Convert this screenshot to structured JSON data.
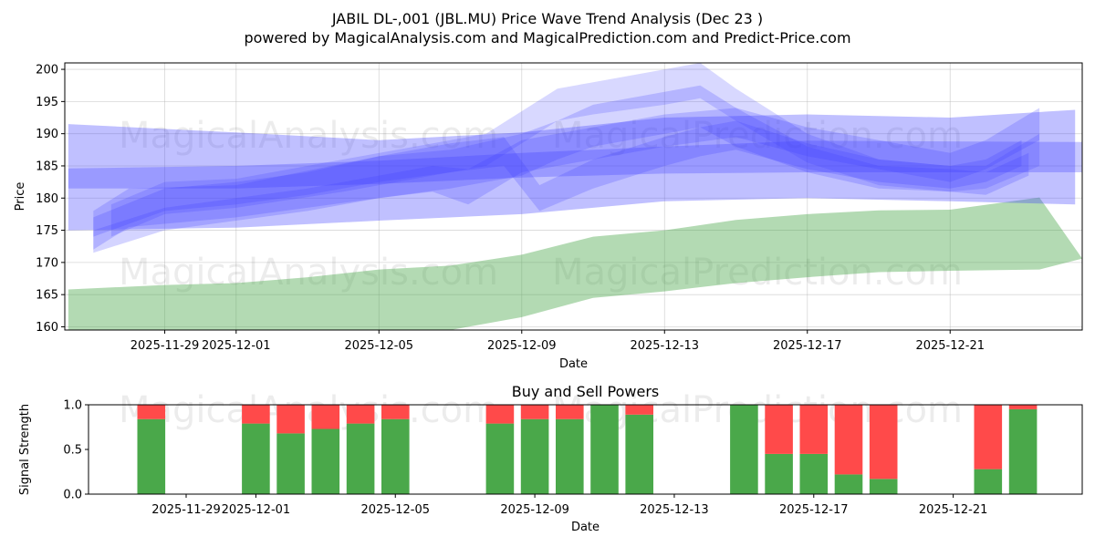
{
  "title_line1": "JABIL DL-,001 (JBL.MU) Price Wave Trend Analysis (Dec 23 )",
  "title_line2": "powered by MagicalAnalysis.com and MagicalPrediction.com and Predict-Price.com",
  "watermarks": [
    "MagicalAnalysis.com",
    "MagicalPrediction.com"
  ],
  "chart_data": [
    {
      "type": "area",
      "title": "JABIL DL-,001 (JBL.MU) Price Wave Trend Analysis (Dec 23 )",
      "xlabel": "Date",
      "ylabel": "Price",
      "ylim": [
        159.5,
        201
      ],
      "yticks": [
        160,
        165,
        170,
        175,
        180,
        185,
        190,
        195,
        200
      ],
      "xlim_days": [
        -2.8,
        25.7
      ],
      "xticks": [
        {
          "label": "2025-11-29",
          "day": 0
        },
        {
          "label": "2025-12-01",
          "day": 2
        },
        {
          "label": "2025-12-05",
          "day": 6
        },
        {
          "label": "2025-12-09",
          "day": 10
        },
        {
          "label": "2025-12-13",
          "day": 14
        },
        {
          "label": "2025-12-17",
          "day": 18
        },
        {
          "label": "2025-12-21",
          "day": 22
        }
      ],
      "grid": true,
      "blue_bands": [
        {
          "days": [
            -2.7,
            2,
            6,
            10,
            14,
            18,
            22,
            25.5
          ],
          "upper": [
            191.5,
            190.2,
            189.0,
            190.2,
            192.5,
            193.0,
            192.5,
            193.7
          ],
          "lower": [
            175.0,
            175.4,
            176.5,
            177.5,
            179.5,
            180.0,
            179.5,
            179.0
          ]
        },
        {
          "days": [
            -2.7,
            2,
            6,
            10,
            14,
            18,
            22,
            25.7
          ],
          "upper": [
            184.6,
            185.0,
            185.8,
            187.0,
            188.0,
            188.9,
            188.8,
            188.7
          ],
          "lower": [
            181.5,
            181.5,
            182.2,
            183.2,
            183.8,
            184.0,
            184.0,
            184.0
          ]
        },
        {
          "days": [
            -2.0,
            -1.0,
            2,
            6,
            8,
            10,
            11,
            12,
            14,
            15,
            16,
            18,
            20,
            22,
            23,
            24.2
          ],
          "upper": [
            178.0,
            181.5,
            182.0,
            186.5,
            187.5,
            190.0,
            192.0,
            194.5,
            196.5,
            197.5,
            194.0,
            188.0,
            185.0,
            184.5,
            184.0,
            187.0
          ],
          "lower": [
            172.0,
            175.5,
            177.0,
            180.0,
            181.5,
            183.5,
            186.0,
            188.0,
            190.0,
            191.0,
            188.0,
            184.0,
            181.5,
            181.0,
            180.5,
            183.5
          ]
        },
        {
          "days": [
            -1.5,
            0,
            2,
            5,
            9,
            10,
            11,
            12,
            14,
            15,
            16,
            18,
            20,
            22,
            23,
            24.5
          ],
          "upper": [
            179.0,
            182.5,
            183.0,
            186.0,
            190.0,
            193.5,
            197.0,
            198.0,
            200.0,
            201.0,
            197.0,
            190.0,
            186.0,
            185.0,
            185.0,
            190.0
          ],
          "lower": [
            174.0,
            177.5,
            178.5,
            181.0,
            185.0,
            188.5,
            192.0,
            193.0,
            194.5,
            195.5,
            192.0,
            185.5,
            182.0,
            181.0,
            181.5,
            185.0
          ]
        },
        {
          "days": [
            -2.0,
            0,
            2,
            4,
            6,
            8,
            9.5,
            10.5,
            12,
            14,
            15,
            16,
            18,
            20,
            22,
            23,
            24.0
          ],
          "upper": [
            177.0,
            181.5,
            182.5,
            184.0,
            186.5,
            188.5,
            189.5,
            182.0,
            186.0,
            189.5,
            191.0,
            192.0,
            188.5,
            186.0,
            185.0,
            186.0,
            189.0
          ],
          "lower": [
            174.0,
            178.0,
            179.0,
            180.5,
            182.5,
            184.0,
            185.0,
            178.0,
            181.5,
            185.0,
            186.5,
            187.5,
            184.5,
            182.5,
            181.5,
            182.5,
            185.0
          ]
        },
        {
          "days": [
            -2.0,
            0,
            2,
            4,
            6,
            7.5,
            8.5,
            10,
            12,
            14,
            16,
            18,
            20,
            22,
            23,
            24.5
          ],
          "upper": [
            175.0,
            178.5,
            180.0,
            181.5,
            183.5,
            185.0,
            184.5,
            189.0,
            191.0,
            193.0,
            194.0,
            191.0,
            189.0,
            187.0,
            189.0,
            194.0
          ],
          "lower": [
            171.5,
            175.0,
            176.5,
            178.0,
            180.0,
            181.0,
            179.0,
            184.0,
            186.0,
            188.0,
            189.5,
            186.5,
            184.5,
            182.5,
            184.5,
            189.0
          ]
        }
      ],
      "green_band": {
        "days": [
          -2.7,
          0,
          2,
          4,
          6,
          8,
          10,
          12,
          14,
          16,
          18,
          20,
          22,
          24.5,
          25.7
        ],
        "upper": [
          165.8,
          166.5,
          166.8,
          167.7,
          168.9,
          169.5,
          171.2,
          174.0,
          175.0,
          176.6,
          177.5,
          178.1,
          178.2,
          180.1,
          170.6
        ],
        "lower": [
          159.5,
          159.5,
          159.5,
          159.5,
          159.5,
          159.5,
          161.5,
          164.5,
          165.5,
          166.8,
          167.7,
          168.5,
          168.7,
          168.9,
          170.6
        ]
      }
    },
    {
      "type": "bar",
      "title": "Buy and Sell Powers",
      "xlabel": "Date",
      "ylabel": "Signal Strength",
      "ylim": [
        0,
        1
      ],
      "yticks": [
        "0.0",
        "0.5",
        "1.0"
      ],
      "xlim_days": [
        -2.8,
        25.7
      ],
      "xticks": [
        {
          "label": "2025-11-29",
          "day": 0
        },
        {
          "label": "2025-12-01",
          "day": 2
        },
        {
          "label": "2025-12-05",
          "day": 6
        },
        {
          "label": "2025-12-09",
          "day": 10
        },
        {
          "label": "2025-12-13",
          "day": 14
        },
        {
          "label": "2025-12-17",
          "day": 18
        },
        {
          "label": "2025-12-21",
          "day": 22
        }
      ],
      "series": [
        {
          "name": "Buy",
          "color": "#4aa84a"
        },
        {
          "name": "Sell",
          "color": "#ff4a4a"
        }
      ],
      "bars": [
        {
          "day": -1,
          "buy": 0.84
        },
        {
          "day": 2,
          "buy": 0.79
        },
        {
          "day": 3,
          "buy": 0.68
        },
        {
          "day": 4,
          "buy": 0.73
        },
        {
          "day": 5,
          "buy": 0.79
        },
        {
          "day": 6,
          "buy": 0.84
        },
        {
          "day": 9,
          "buy": 0.79
        },
        {
          "day": 10,
          "buy": 0.84
        },
        {
          "day": 11,
          "buy": 0.84
        },
        {
          "day": 12,
          "buy": 1.0
        },
        {
          "day": 13,
          "buy": 0.89
        },
        {
          "day": 16,
          "buy": 1.0
        },
        {
          "day": 17,
          "buy": 0.45
        },
        {
          "day": 18,
          "buy": 0.45
        },
        {
          "day": 19,
          "buy": 0.22
        },
        {
          "day": 20,
          "buy": 0.17
        },
        {
          "day": 23,
          "buy": 0.28
        },
        {
          "day": 24,
          "buy": 0.95
        }
      ]
    }
  ]
}
